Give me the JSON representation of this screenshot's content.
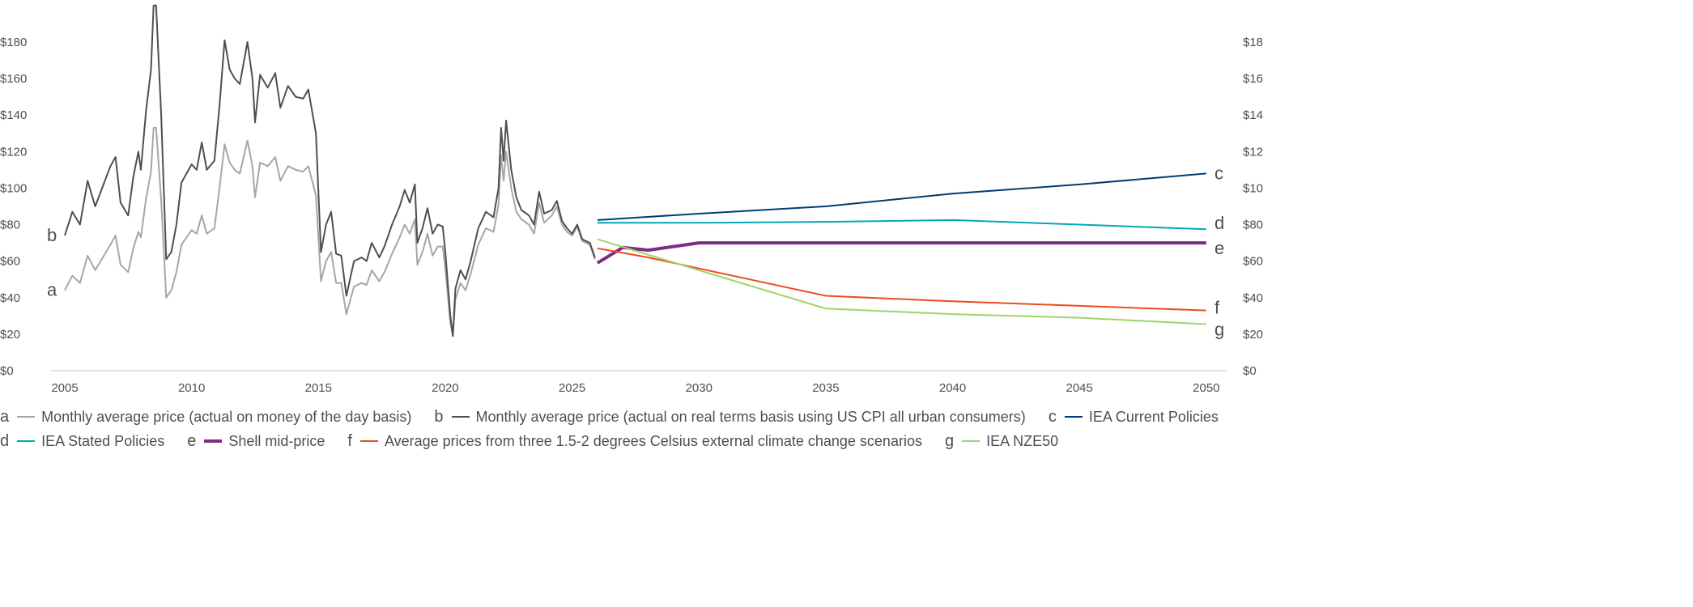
{
  "chart_data": {
    "type": "line",
    "title": "",
    "xlabel": "",
    "ylabel": "",
    "xlim": [
      2004.5,
      2050.8
    ],
    "ylim": [
      0,
      180
    ],
    "x_ticks": [
      2005,
      2010,
      2015,
      2020,
      2025,
      2030,
      2035,
      2040,
      2045,
      2050
    ],
    "x_tick_labels": [
      "2005",
      "2010",
      "2015",
      "2020",
      "2025",
      "2030",
      "2035",
      "2040",
      "2045",
      "2050"
    ],
    "y_ticks": [
      0,
      20,
      40,
      60,
      80,
      100,
      120,
      140,
      160,
      180
    ],
    "y_tick_labels": [
      "$0",
      "$20",
      "$40",
      "$60",
      "$80",
      "$100",
      "$120",
      "$140",
      "$160",
      "$180"
    ],
    "grid": false,
    "legend_placement": "bottom",
    "series": [
      {
        "key": "a",
        "name": "Monthly average price (actual on money of the day basis)",
        "color": "#a6a6a6",
        "width": 2,
        "x": [
          2005.0,
          2005.3,
          2005.6,
          2005.9,
          2006.2,
          2006.5,
          2006.8,
          2007.0,
          2007.2,
          2007.5,
          2007.7,
          2007.9,
          2008.0,
          2008.2,
          2008.4,
          2008.5,
          2008.6,
          2008.8,
          2009.0,
          2009.2,
          2009.4,
          2009.6,
          2009.8,
          2010.0,
          2010.2,
          2010.4,
          2010.6,
          2010.9,
          2011.1,
          2011.3,
          2011.5,
          2011.7,
          2011.9,
          2012.2,
          2012.4,
          2012.5,
          2012.7,
          2013.0,
          2013.3,
          2013.5,
          2013.8,
          2014.1,
          2014.4,
          2014.6,
          2014.9,
          2015.1,
          2015.3,
          2015.5,
          2015.7,
          2015.9,
          2016.1,
          2016.4,
          2016.7,
          2016.9,
          2017.1,
          2017.4,
          2017.6,
          2017.9,
          2018.2,
          2018.4,
          2018.6,
          2018.8,
          2018.9,
          2019.1,
          2019.3,
          2019.5,
          2019.7,
          2019.9,
          2020.0,
          2020.2,
          2020.3,
          2020.4,
          2020.6,
          2020.8,
          2021.0,
          2021.3,
          2021.6,
          2021.9,
          2022.1,
          2022.2,
          2022.3,
          2022.4,
          2022.6,
          2022.8,
          2023.0,
          2023.3,
          2023.5,
          2023.7,
          2023.9,
          2024.2,
          2024.4,
          2024.6,
          2024.8,
          2025.0,
          2025.2,
          2025.4,
          2025.7,
          2025.9
        ],
        "values": [
          44,
          52,
          48,
          63,
          55,
          62,
          69,
          74,
          58,
          54,
          67,
          76,
          73,
          94,
          109,
          133,
          133,
          93,
          40,
          44,
          54,
          69,
          73,
          77,
          75,
          85,
          75,
          78,
          100,
          124,
          114,
          110,
          108,
          126,
          112,
          95,
          114,
          112,
          117,
          104,
          112,
          110,
          109,
          112,
          96,
          49,
          60,
          65,
          48,
          48,
          31,
          46,
          48,
          47,
          55,
          49,
          54,
          64,
          73,
          80,
          75,
          83,
          58,
          65,
          75,
          63,
          68,
          68,
          56,
          26,
          19,
          39,
          48,
          44,
          53,
          69,
          78,
          76,
          91,
          118,
          104,
          120,
          100,
          87,
          83,
          80,
          75,
          92,
          81,
          85,
          90,
          80,
          76,
          74,
          79,
          71,
          69,
          61
        ]
      },
      {
        "key": "b",
        "name": "Monthly average price (actual on real terms basis using US CPI all urban consumers)",
        "color": "#4d4f53",
        "width": 2,
        "x": [
          2005.0,
          2005.3,
          2005.6,
          2005.9,
          2006.2,
          2006.5,
          2006.8,
          2007.0,
          2007.2,
          2007.5,
          2007.7,
          2007.9,
          2008.0,
          2008.2,
          2008.4,
          2008.5,
          2008.6,
          2008.8,
          2009.0,
          2009.2,
          2009.4,
          2009.6,
          2009.8,
          2010.0,
          2010.2,
          2010.4,
          2010.6,
          2010.9,
          2011.1,
          2011.3,
          2011.5,
          2011.7,
          2011.9,
          2012.2,
          2012.4,
          2012.5,
          2012.7,
          2013.0,
          2013.3,
          2013.5,
          2013.8,
          2014.1,
          2014.4,
          2014.6,
          2014.9,
          2015.1,
          2015.3,
          2015.5,
          2015.7,
          2015.9,
          2016.1,
          2016.4,
          2016.7,
          2016.9,
          2017.1,
          2017.4,
          2017.6,
          2017.9,
          2018.2,
          2018.4,
          2018.6,
          2018.8,
          2018.9,
          2019.1,
          2019.3,
          2019.5,
          2019.7,
          2019.9,
          2020.0,
          2020.2,
          2020.3,
          2020.4,
          2020.6,
          2020.8,
          2021.0,
          2021.3,
          2021.6,
          2021.9,
          2022.1,
          2022.2,
          2022.3,
          2022.4,
          2022.6,
          2022.8,
          2023.0,
          2023.3,
          2023.5,
          2023.7,
          2023.9,
          2024.2,
          2024.4,
          2024.6,
          2024.8,
          2025.0,
          2025.2,
          2025.4,
          2025.7,
          2025.9
        ],
        "values": [
          74,
          87,
          80,
          104,
          90,
          101,
          112,
          117,
          92,
          85,
          106,
          120,
          110,
          142,
          165,
          200,
          200,
          140,
          61,
          65,
          80,
          103,
          108,
          113,
          110,
          125,
          110,
          115,
          145,
          181,
          165,
          160,
          157,
          180,
          160,
          136,
          162,
          155,
          163,
          144,
          156,
          150,
          149,
          154,
          130,
          65,
          80,
          87,
          64,
          63,
          41,
          60,
          62,
          60,
          70,
          62,
          68,
          80,
          90,
          99,
          92,
          102,
          70,
          78,
          89,
          75,
          80,
          79,
          65,
          30,
          19,
          45,
          55,
          50,
          60,
          78,
          87,
          84,
          100,
          133,
          115,
          137,
          110,
          95,
          88,
          85,
          80,
          98,
          86,
          88,
          93,
          82,
          78,
          75,
          80,
          72,
          70,
          62
        ]
      },
      {
        "key": "c",
        "name": "IEA Current Policies",
        "color": "#003c71",
        "width": 2,
        "x": [
          2026,
          2030,
          2035,
          2040,
          2045,
          2050
        ],
        "values": [
          82.5,
          86,
          90,
          97,
          102,
          108
        ]
      },
      {
        "key": "d",
        "name": "IEA Stated Policies",
        "color": "#00a9b7",
        "width": 2,
        "x": [
          2026,
          2030,
          2035,
          2040,
          2045,
          2050
        ],
        "values": [
          81,
          81,
          81.5,
          82.5,
          80,
          77.5
        ]
      },
      {
        "key": "e",
        "name": "Shell mid-price",
        "color": "#7f2a86",
        "width": 4,
        "x": [
          2026,
          2027,
          2028,
          2030,
          2050
        ],
        "values": [
          59,
          67.5,
          66,
          70,
          70
        ]
      },
      {
        "key": "f",
        "name": "Average prices from three 1.5-2 degrees Celsius external climate change scenarios",
        "color": "#ee4b1f",
        "width": 2,
        "x": [
          2026,
          2028,
          2030,
          2035,
          2040,
          2042,
          2045,
          2050
        ],
        "values": [
          67,
          62,
          56,
          41,
          38,
          37,
          35.5,
          33
        ]
      },
      {
        "key": "g",
        "name": "IEA NZE50",
        "color": "#9ed36a",
        "width": 2,
        "x": [
          2026,
          2030,
          2035,
          2040,
          2045,
          2050
        ],
        "values": [
          72,
          55,
          34,
          31,
          29,
          25.5
        ]
      }
    ]
  }
}
